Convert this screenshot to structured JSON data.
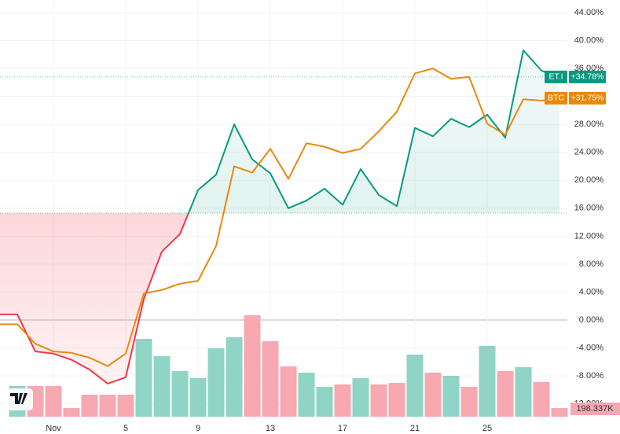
{
  "chart_data": {
    "type": "line",
    "categories": [
      null,
      null,
      "Nov",
      null,
      null,
      null,
      "5",
      null,
      null,
      null,
      "9",
      null,
      null,
      null,
      "13",
      null,
      null,
      null,
      "17",
      null,
      null,
      null,
      "21",
      null,
      null,
      null,
      "25",
      null,
      null,
      null,
      null
    ],
    "series": [
      {
        "name": "ET.I",
        "color": "#089981",
        "below_color": "#f23645",
        "values": [
          0.8,
          -4.5,
          -4.8,
          -5.7,
          -7.1,
          -9.1,
          -8.2,
          3.0,
          9.8,
          12.3,
          18.6,
          20.8,
          28.0,
          23.0,
          21.0,
          16.0,
          17.1,
          18.8,
          16.5,
          21.6,
          17.9,
          16.3,
          27.5,
          26.3,
          28.8,
          27.6,
          29.4,
          26.1,
          38.6,
          35.7,
          34.78
        ],
        "value_labels": [
          null,
          null,
          null,
          null,
          null,
          null,
          null,
          null,
          null,
          null,
          null,
          null,
          null,
          null,
          null,
          null,
          null,
          null,
          null,
          null,
          null,
          null,
          null,
          null,
          null,
          null,
          null,
          null,
          null,
          null,
          "+34.78%"
        ]
      },
      {
        "name": "BTC",
        "color": "#e8890c",
        "values": [
          -0.6,
          -3.4,
          -4.5,
          -4.7,
          -5.4,
          -6.6,
          -4.8,
          3.8,
          4.3,
          5.2,
          5.6,
          10.6,
          22.0,
          21.1,
          24.5,
          20.2,
          25.3,
          24.8,
          23.9,
          24.5,
          27.0,
          29.8,
          35.3,
          36.0,
          34.5,
          34.8,
          28.1,
          26.5,
          31.6,
          31.4,
          31.75
        ],
        "value_labels": [
          null,
          null,
          null,
          null,
          null,
          null,
          null,
          null,
          null,
          null,
          null,
          null,
          null,
          null,
          null,
          null,
          null,
          null,
          null,
          null,
          null,
          null,
          null,
          null,
          null,
          null,
          null,
          null,
          null,
          null,
          "+31.75%"
        ]
      }
    ],
    "baseline": 15.3,
    "volume": {
      "values": [
        702000,
        702000,
        702000,
        198000,
        504000,
        504000,
        504000,
        1782000,
        1386000,
        1044000,
        882000,
        1566000,
        1818000,
        2322000,
        1728000,
        1152000,
        1008000,
        684000,
        738000,
        882000,
        738000,
        774000,
        1422000,
        1008000,
        936000,
        684000,
        1620000,
        1044000,
        1134000,
        792000,
        198337
      ],
      "value_labels": [
        null,
        null,
        null,
        null,
        null,
        null,
        null,
        null,
        null,
        null,
        null,
        null,
        null,
        null,
        null,
        null,
        null,
        null,
        null,
        null,
        null,
        null,
        null,
        null,
        null,
        null,
        null,
        null,
        null,
        null,
        "198.337K"
      ],
      "colors": [
        "#8fd4c4",
        "#f7a8b0",
        "#f7a8b0",
        "#f7a8b0",
        "#f7a8b0",
        "#f7a8b0",
        "#f7a8b0",
        "#8fd4c4",
        "#8fd4c4",
        "#8fd4c4",
        "#8fd4c4",
        "#8fd4c4",
        "#8fd4c4",
        "#f7a8b0",
        "#f7a8b0",
        "#f7a8b0",
        "#8fd4c4",
        "#8fd4c4",
        "#f7a8b0",
        "#8fd4c4",
        "#f7a8b0",
        "#f7a8b0",
        "#8fd4c4",
        "#f7a8b0",
        "#8fd4c4",
        "#f7a8b0",
        "#8fd4c4",
        "#f7a8b0",
        "#8fd4c4",
        "#f7a8b0",
        "#f7a8b0"
      ]
    },
    "ylim": [
      -14.4,
      45.8
    ],
    "yticks": [
      {
        "value": 44,
        "label": "44.00%"
      },
      {
        "value": 40,
        "label": "40.00%"
      },
      {
        "value": 36,
        "label": "36.00%"
      },
      {
        "value": 32,
        "label": "32.00%"
      },
      {
        "value": 28,
        "label": "28.00%"
      },
      {
        "value": 24,
        "label": "24.00%"
      },
      {
        "value": 20,
        "label": "20.00%"
      },
      {
        "value": 16,
        "label": "16.00%"
      },
      {
        "value": 12,
        "label": "12.00%"
      },
      {
        "value": 8,
        "label": "8.00%"
      },
      {
        "value": 4,
        "label": "4.00%"
      },
      {
        "value": 0,
        "label": "0.00%"
      },
      {
        "value": -4,
        "label": "-4.00%"
      },
      {
        "value": -8,
        "label": "-8.00%"
      },
      {
        "value": -12,
        "label": "-12.00%"
      }
    ],
    "grid": true
  }
}
